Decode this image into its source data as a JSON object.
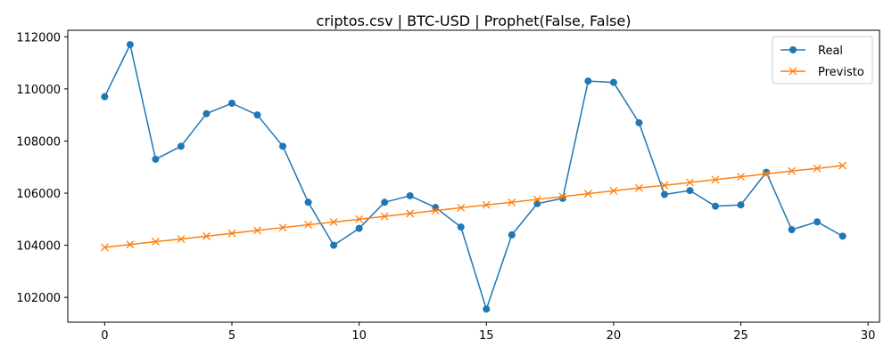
{
  "chart_data": {
    "type": "line",
    "title": "criptos.csv | BTC-USD | Prophet(False, False)",
    "xlabel": "",
    "ylabel": "",
    "xlim": [
      -1.45,
      30.45
    ],
    "ylim": [
      101050,
      112250
    ],
    "xticks": [
      0,
      5,
      10,
      15,
      20,
      25,
      30
    ],
    "yticks": [
      102000,
      104000,
      106000,
      108000,
      110000,
      112000
    ],
    "grid": false,
    "legend_position": "top-right",
    "x": [
      0,
      1,
      2,
      3,
      4,
      5,
      6,
      7,
      8,
      9,
      10,
      11,
      12,
      13,
      14,
      15,
      16,
      17,
      18,
      19,
      20,
      21,
      22,
      23,
      24,
      25,
      26,
      27,
      28,
      29
    ],
    "series": [
      {
        "name": "Real",
        "color": "#1f77b4",
        "marker": "circle",
        "values": [
          109700,
          111700,
          107300,
          107800,
          109050,
          109450,
          109000,
          107800,
          105650,
          104000,
          104650,
          105650,
          105900,
          105450,
          104700,
          101550,
          104400,
          105600,
          105800,
          110300,
          110250,
          108700,
          105950,
          106100,
          105500,
          105550,
          106800,
          104600,
          104900,
          104350
        ]
      },
      {
        "name": "Previsto",
        "color": "#ff7f0e",
        "marker": "x",
        "values": [
          103920,
          104030,
          104140,
          104240,
          104350,
          104460,
          104570,
          104680,
          104790,
          104890,
          105000,
          105110,
          105220,
          105330,
          105440,
          105550,
          105650,
          105760,
          105870,
          105980,
          106090,
          106200,
          106300,
          106410,
          106520,
          106630,
          106740,
          106850,
          106950,
          107060
        ]
      }
    ]
  }
}
